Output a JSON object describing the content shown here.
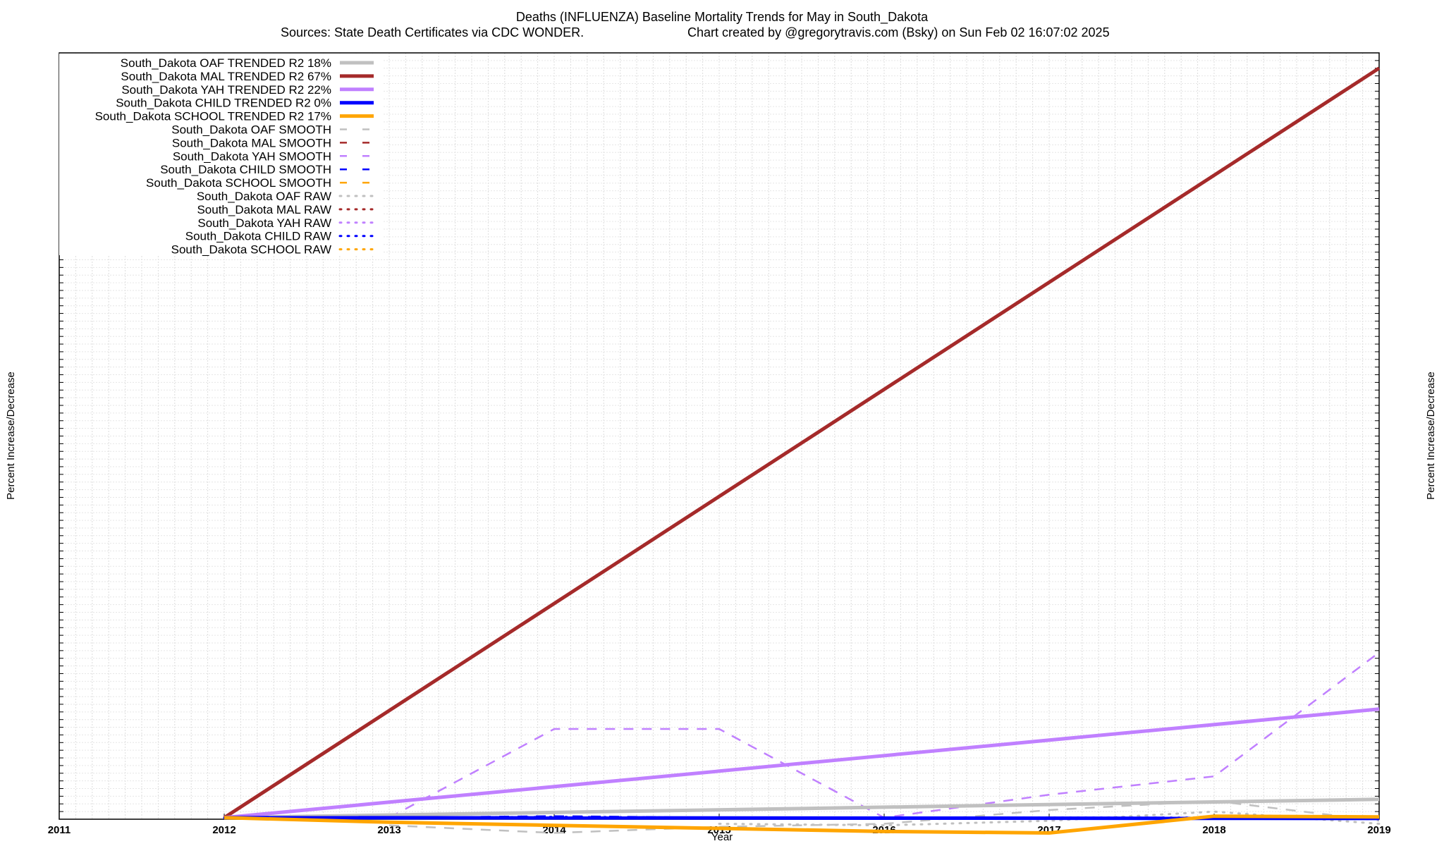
{
  "chart_data": {
    "type": "line",
    "title": "Deaths (INFLUENZA)  Baseline Mortality Trends for May in South_Dakota",
    "subtitle_left": "Sources: State Death Certificates via CDC WONDER.",
    "subtitle_right": "Chart created by @gregorytravis.com (Bsky) on Sun Feb 02 16:07:02 2025",
    "xlabel": "Year",
    "ylabel": "Percent Increase/Decrease",
    "xlim": [
      2011,
      2019
    ],
    "ylim": [
      -10,
      5000
    ],
    "x_ticks": [
      "2011",
      "2012",
      "2013",
      "2014",
      "2015",
      "2016",
      "2017",
      "2018",
      "2019"
    ],
    "grid": true,
    "legend_position": "top-left",
    "colors": {
      "OAF": "#c0c0c0",
      "MAL": "#a52a2a",
      "YAH": "#c080ff",
      "CHILD": "#0000ff",
      "SCHOOL": "#ffa500"
    },
    "series": [
      {
        "name": "South_Dakota OAF TRENDED R2  18%",
        "group": "OAF",
        "style": "trend",
        "x": [
          2012,
          2019
        ],
        "y": [
          0,
          120
        ]
      },
      {
        "name": "South_Dakota MAL TRENDED R2  67%",
        "group": "MAL",
        "style": "trend",
        "x": [
          2012,
          2019
        ],
        "y": [
          0,
          4900
        ]
      },
      {
        "name": "South_Dakota YAH TRENDED R2  22%",
        "group": "YAH",
        "style": "trend",
        "x": [
          2012,
          2019
        ],
        "y": [
          0,
          710
        ]
      },
      {
        "name": "South_Dakota CHILD TRENDED R2   0%",
        "group": "CHILD",
        "style": "trend",
        "x": [
          2012,
          2019
        ],
        "y": [
          0,
          -5
        ]
      },
      {
        "name": "South_Dakota SCHOOL TRENDED R2  17%",
        "group": "SCHOOL",
        "style": "trend",
        "x": [
          2012,
          2013,
          2014,
          2015,
          2016,
          2017,
          2018,
          2019
        ],
        "y": [
          0,
          -30,
          -50,
          -70,
          -90,
          -100,
          10,
          5
        ]
      },
      {
        "name": "South_Dakota OAF SMOOTH",
        "group": "OAF",
        "style": "smooth",
        "x": [
          2013,
          2014,
          2015,
          2016,
          2017,
          2018,
          2019
        ],
        "y": [
          -50,
          -100,
          -60,
          -40,
          50,
          110,
          -20
        ]
      },
      {
        "name": "South_Dakota MAL SMOOTH",
        "group": "MAL",
        "style": "smooth",
        "x": [],
        "y": []
      },
      {
        "name": "South_Dakota YAH SMOOTH",
        "group": "YAH",
        "style": "smooth",
        "x": [
          2013,
          2014,
          2015,
          2016,
          2017,
          2018,
          2019
        ],
        "y": [
          0,
          580,
          580,
          0,
          150,
          270,
          1080
        ]
      },
      {
        "name": "South_Dakota CHILD SMOOTH",
        "group": "CHILD",
        "style": "smooth",
        "x": [
          2012,
          2013,
          2014,
          2015,
          2016,
          2017,
          2018,
          2019
        ],
        "y": [
          0,
          0,
          10,
          0,
          0,
          0,
          0,
          0
        ]
      },
      {
        "name": "South_Dakota SCHOOL SMOOTH",
        "group": "SCHOOL",
        "style": "smooth",
        "x": [],
        "y": []
      },
      {
        "name": "South_Dakota OAF RAW",
        "group": "OAF",
        "style": "raw",
        "x": [
          2015,
          2016,
          2017,
          2018,
          2019
        ],
        "y": [
          -40,
          -50,
          -20,
          40,
          -40
        ]
      },
      {
        "name": "South_Dakota MAL RAW",
        "group": "MAL",
        "style": "raw",
        "x": [],
        "y": []
      },
      {
        "name": "South_Dakota YAH RAW",
        "group": "YAH",
        "style": "raw",
        "x": [],
        "y": []
      },
      {
        "name": "South_Dakota CHILD RAW",
        "group": "CHILD",
        "style": "raw",
        "x": [
          2012,
          2013,
          2014,
          2015,
          2016,
          2017,
          2018,
          2019
        ],
        "y": [
          0,
          0,
          5,
          0,
          0,
          0,
          0,
          0
        ]
      },
      {
        "name": "South_Dakota SCHOOL RAW",
        "group": "SCHOOL",
        "style": "raw",
        "x": [],
        "y": []
      }
    ]
  }
}
